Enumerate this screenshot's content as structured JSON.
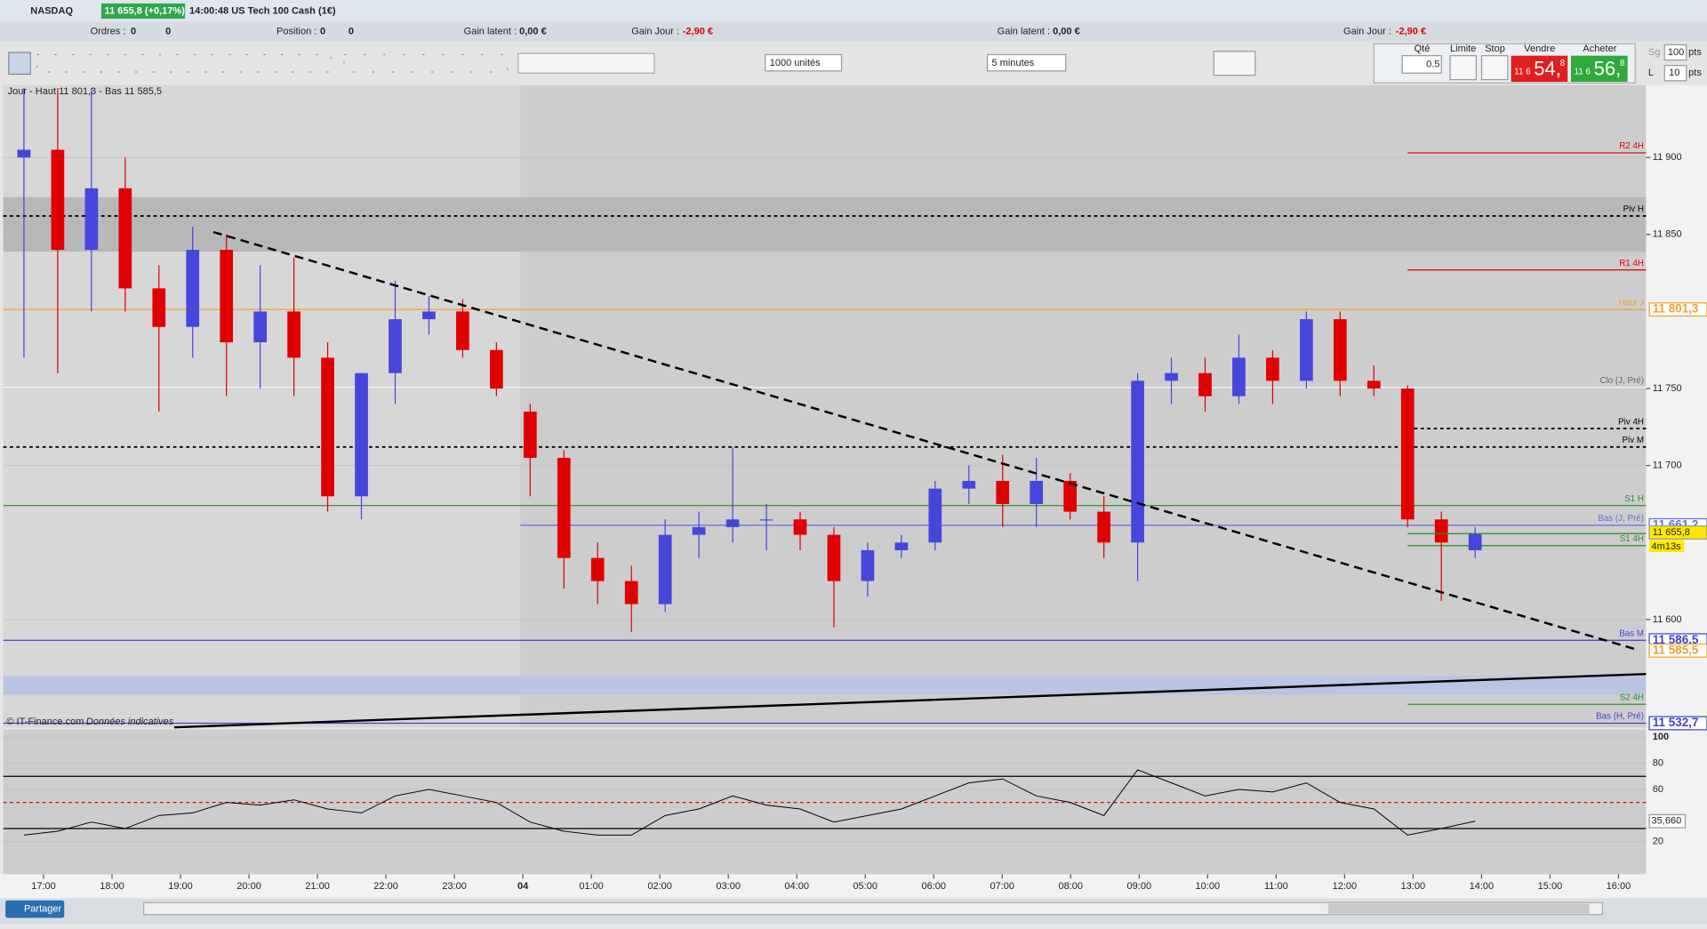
{
  "title_bar": {
    "symbol": "NASDAQ",
    "quote": "11 655,8 (+0,17%)",
    "instrument": "14:00:48 US Tech 100 Cash (1€)"
  },
  "info_bar": {
    "orders_label": "Ordres :",
    "orders": "0",
    "orders_2": "0",
    "position_label": "Position :",
    "position": "0",
    "position_2": "0",
    "gains": [
      {
        "latent_label": "Gain latent :",
        "latent": "0,00 €",
        "day_label": "Gain Jour :",
        "day": "-2,90 €"
      },
      {
        "latent_label": "Gain latent :",
        "latent": "0,00 €",
        "day_label": "Gain Jour :",
        "day": "-2,90 €"
      }
    ]
  },
  "toolbar": {
    "quantity": "1000 unités",
    "period": "5 minutes"
  },
  "order_panel": {
    "qty_label": "Qté",
    "qty": "0.5",
    "limit": "Limite",
    "stop": "Stop",
    "sell_label": "Vendre",
    "sell": [
      "11 6",
      "54,",
      "8"
    ],
    "buy_label": "Acheter",
    "buy": [
      "11 6",
      "56,",
      "8"
    ],
    "sg": "Sg",
    "sg_value": "100",
    "pts": "pts",
    "l": "L",
    "l_value": "10"
  },
  "chart_data": {
    "type": "candlestick",
    "legend": "Jour - Haut 11 801,3 - Bas 11 585,5",
    "source": "© IT-Finance.com",
    "source_note": "Données indicatives",
    "open": [
      11900,
      11905,
      11840,
      11880,
      11815,
      11790,
      11840,
      11780,
      11800,
      11770,
      11680,
      11760,
      11795,
      11800,
      11775,
      11735,
      11705,
      11640,
      11625,
      11610,
      11655,
      11660,
      11665,
      11665,
      11655,
      11625,
      11645,
      11650,
      11685,
      11690,
      11675,
      11690,
      11670,
      11650,
      11755,
      11760,
      11745,
      11770,
      11755,
      11795,
      11755,
      11750,
      11665,
      11645
    ],
    "high": [
      11945,
      11945,
      11945,
      11900,
      11830,
      11855,
      11850,
      11830,
      11835,
      11780,
      11760,
      11820,
      11810,
      11808,
      11780,
      11740,
      11710,
      11650,
      11635,
      11665,
      11670,
      11712,
      11675,
      11670,
      11660,
      11650,
      11655,
      11690,
      11700,
      11707,
      11705,
      11695,
      11680,
      11760,
      11770,
      11770,
      11785,
      11775,
      11800,
      11800,
      11765,
      11752,
      11670,
      11660
    ],
    "low": [
      11770,
      11760,
      11800,
      11800,
      11735,
      11770,
      11745,
      11750,
      11745,
      11670,
      11665,
      11740,
      11785,
      11770,
      11745,
      11680,
      11620,
      11610,
      11592,
      11605,
      11640,
      11650,
      11645,
      11645,
      11595,
      11615,
      11640,
      11645,
      11675,
      11660,
      11660,
      11665,
      11640,
      11625,
      11740,
      11735,
      11740,
      11740,
      11750,
      11745,
      11745,
      11660,
      11612,
      11640
    ],
    "close": [
      11905,
      11840,
      11880,
      11815,
      11790,
      11840,
      11780,
      11800,
      11770,
      11680,
      11760,
      11795,
      11800,
      11775,
      11750,
      11705,
      11640,
      11625,
      11610,
      11655,
      11660,
      11665,
      11665,
      11655,
      11625,
      11645,
      11650,
      11685,
      11690,
      11675,
      11690,
      11670,
      11650,
      11755,
      11760,
      11745,
      11770,
      11755,
      11795,
      11755,
      11750,
      11665,
      11650,
      11655.8
    ],
    "up_color": "#4646dc",
    "down_color": "#e00000",
    "ylim": [
      11530,
      11947
    ],
    "yticks": [
      {
        "value": 11600,
        "label": "11 600"
      },
      {
        "value": 11700,
        "label": "11 700"
      },
      {
        "value": 11750,
        "label": "11 750"
      },
      {
        "value": 11850,
        "label": "11 850"
      },
      {
        "value": 11900,
        "label": "11 900"
      }
    ],
    "xticks": [
      "17:00",
      "18:00",
      "19:00",
      "20:00",
      "21:00",
      "22:00",
      "23:00",
      "04",
      "01:00",
      "02:00",
      "03:00",
      "04:00",
      "05:00",
      "06:00",
      "07:00",
      "08:00",
      "09:00",
      "10:00",
      "11:00",
      "12:00",
      "13:00",
      "14:00",
      "15:00",
      "16:00"
    ],
    "levels": [
      {
        "name": "R2 4H",
        "value": 11903,
        "color": "#e00000",
        "dash": false,
        "start": "4h"
      },
      {
        "name": "Piv H",
        "value": 11862,
        "color": "#000000",
        "dash": true,
        "start": "full"
      },
      {
        "name": "R1 4H",
        "value": 11827,
        "color": "#e00000",
        "dash": false,
        "start": "4h"
      },
      {
        "name": "Haut J",
        "value": 11801.3,
        "value_label": "11 801,3",
        "color": "#f0a030",
        "dash": false,
        "start": "full"
      },
      {
        "name": "Clo (J, Pré)",
        "value": 11750.6,
        "color": "#ffffff",
        "dash": false,
        "start": "full"
      },
      {
        "name": "Piv 4H",
        "value": 11724,
        "color": "#000000",
        "dash": true,
        "start": "4h"
      },
      {
        "name": "Piv M",
        "value": 11712,
        "color": "#000000",
        "dash": true,
        "start": "full"
      },
      {
        "name": "S1 H",
        "value": 11674,
        "color": "#2a8a2a",
        "dash": false,
        "start": "full"
      },
      {
        "name": "Bas (J, Pré)",
        "value": 11661.2,
        "value_label": "11 661,2",
        "color": "#6a6ae0",
        "dash": false,
        "start": "day"
      },
      {
        "name": "S1 4H",
        "value": 11648,
        "color": "#2a8a2a",
        "dash": false,
        "start": "4h"
      },
      {
        "name": "Bas M",
        "value": 11586.5,
        "value_label": "11 586,5",
        "color": "#4040d0",
        "dash": false,
        "start": "full"
      },
      {
        "name": "S2 4H",
        "value": 11545,
        "color": "#2a8a2a",
        "dash": false,
        "start": "4h"
      },
      {
        "name": "Bas (H, Pré)",
        "value": 11532.7,
        "value_label": "11 532,7",
        "color": "#4040d0",
        "dash": false,
        "start": "full"
      }
    ],
    "day_low": {
      "value": 11585.5,
      "label": "11 585,5"
    },
    "current": {
      "value": 11655.8,
      "label": "11 655,8",
      "countdown": "4m13s"
    },
    "rsi": {
      "values": [
        25,
        28,
        35,
        30,
        40,
        42,
        50,
        48,
        52,
        45,
        42,
        55,
        60,
        55,
        50,
        35,
        28,
        25,
        25,
        40,
        45,
        55,
        48,
        45,
        35,
        40,
        45,
        55,
        65,
        68,
        55,
        50,
        40,
        75,
        65,
        55,
        60,
        58,
        65,
        50,
        45,
        25,
        30,
        35.66
      ],
      "color": "#000000",
      "ylim": [
        0,
        100
      ],
      "yticks": [
        20,
        60,
        80,
        100
      ],
      "current": {
        "value": 35.66,
        "label": "35,660"
      },
      "levels": [
        {
          "value": 70,
          "color": "#000000",
          "dash": false
        },
        {
          "value": 50,
          "color": "#e00000",
          "dash": true
        },
        {
          "value": 30,
          "color": "#000000",
          "dash": false
        }
      ]
    }
  },
  "bottom_bar": {
    "share": "Partager"
  }
}
